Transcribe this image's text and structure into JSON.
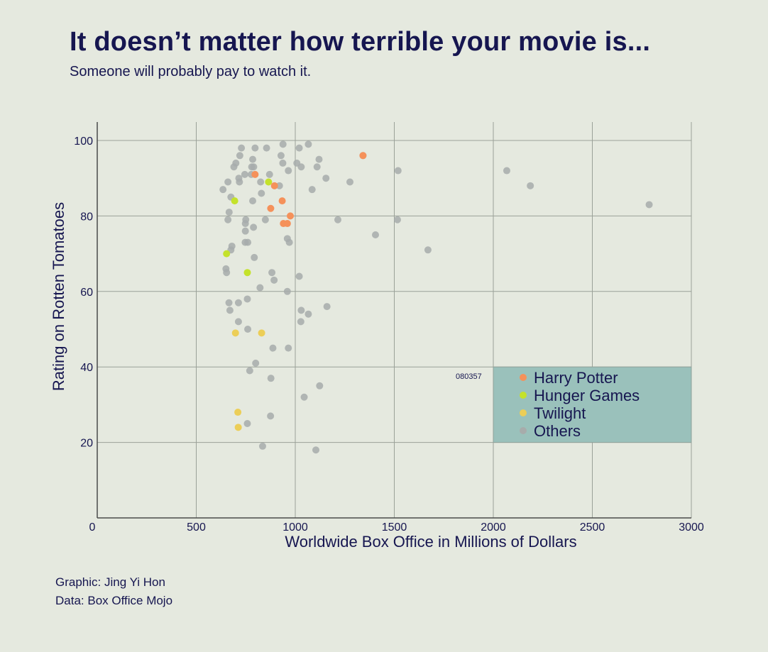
{
  "title": "It doesn’t matter how terrible your movie is...",
  "subtitle": "Someone will probably pay to watch it.",
  "credits": {
    "graphic": "Graphic: Jing Yi Hon",
    "data": "Data: Box Office Mojo"
  },
  "chart_data": {
    "type": "scatter",
    "xlabel": "Worldwide Box Office in Millions of Dollars",
    "ylabel": "Rating on Rotten Tomatoes",
    "xlim": [
      0,
      3000
    ],
    "ylim": [
      0,
      105
    ],
    "x_ticks": [
      0,
      500,
      1000,
      1500,
      2000,
      2500,
      3000
    ],
    "y_ticks": [
      20,
      40,
      60,
      80,
      100
    ],
    "grid": true,
    "legend_position": "lower-right",
    "legend_code": "080357",
    "series": [
      {
        "name": "Harry Potter",
        "color": "#f5915a",
        "points": [
          [
            1342,
            96
          ],
          [
            797,
            91
          ],
          [
            895,
            88
          ],
          [
            934,
            84
          ],
          [
            876,
            82
          ],
          [
            975,
            80
          ],
          [
            940,
            78
          ],
          [
            960,
            78
          ]
        ]
      },
      {
        "name": "Hunger Games",
        "color": "#c4e22b",
        "points": [
          [
            865,
            89
          ],
          [
            694,
            84
          ],
          [
            653,
            70
          ],
          [
            758,
            65
          ]
        ]
      },
      {
        "name": "Twilight",
        "color": "#ecce57",
        "points": [
          [
            698,
            49
          ],
          [
            830,
            49
          ],
          [
            710,
            28
          ],
          [
            712,
            24
          ]
        ]
      },
      {
        "name": "Others",
        "color": "#a7acab",
        "points": [
          [
            728,
            98
          ],
          [
            797,
            98
          ],
          [
            855,
            98
          ],
          [
            938,
            99
          ],
          [
            1066,
            99
          ],
          [
            1020,
            98
          ],
          [
            720,
            96
          ],
          [
            928,
            96
          ],
          [
            1120,
            95
          ],
          [
            1342,
            96
          ],
          [
            785,
            95
          ],
          [
            700,
            94
          ],
          [
            937,
            94
          ],
          [
            1008,
            94
          ],
          [
            690,
            93
          ],
          [
            780,
            93
          ],
          [
            790,
            93
          ],
          [
            1030,
            93
          ],
          [
            1110,
            93
          ],
          [
            745,
            91
          ],
          [
            778,
            91
          ],
          [
            870,
            91
          ],
          [
            965,
            92
          ],
          [
            1519,
            92
          ],
          [
            2068,
            92
          ],
          [
            715,
            90
          ],
          [
            1155,
            90
          ],
          [
            660,
            89
          ],
          [
            718,
            89
          ],
          [
            825,
            89
          ],
          [
            1276,
            89
          ],
          [
            920,
            88
          ],
          [
            2187,
            88
          ],
          [
            635,
            87
          ],
          [
            1085,
            87
          ],
          [
            829,
            86
          ],
          [
            675,
            85
          ],
          [
            785,
            84
          ],
          [
            666,
            81
          ],
          [
            1215,
            79
          ],
          [
            1516,
            79
          ],
          [
            849,
            79
          ],
          [
            750,
            79
          ],
          [
            660,
            79
          ],
          [
            748,
            78
          ],
          [
            789,
            77
          ],
          [
            748,
            76
          ],
          [
            1405,
            75
          ],
          [
            960,
            74
          ],
          [
            970,
            73
          ],
          [
            747,
            73
          ],
          [
            760,
            73
          ],
          [
            680,
            72
          ],
          [
            675,
            71
          ],
          [
            1670,
            71
          ],
          [
            793,
            69
          ],
          [
            650,
            66
          ],
          [
            653,
            65
          ],
          [
            882,
            65
          ],
          [
            1020,
            64
          ],
          [
            893,
            63
          ],
          [
            822,
            61
          ],
          [
            960,
            60
          ],
          [
            758,
            58
          ],
          [
            665,
            57
          ],
          [
            713,
            57
          ],
          [
            1160,
            56
          ],
          [
            670,
            55
          ],
          [
            1030,
            55
          ],
          [
            1066,
            54
          ],
          [
            713,
            52
          ],
          [
            1028,
            52
          ],
          [
            760,
            50
          ],
          [
            887,
            45
          ],
          [
            965,
            45
          ],
          [
            800,
            41
          ],
          [
            770,
            39
          ],
          [
            877,
            37
          ],
          [
            1123,
            35
          ],
          [
            1045,
            32
          ],
          [
            875,
            27
          ],
          [
            758,
            25
          ],
          [
            835,
            19
          ],
          [
            1104,
            18
          ],
          [
            2787,
            83
          ]
        ]
      }
    ]
  }
}
